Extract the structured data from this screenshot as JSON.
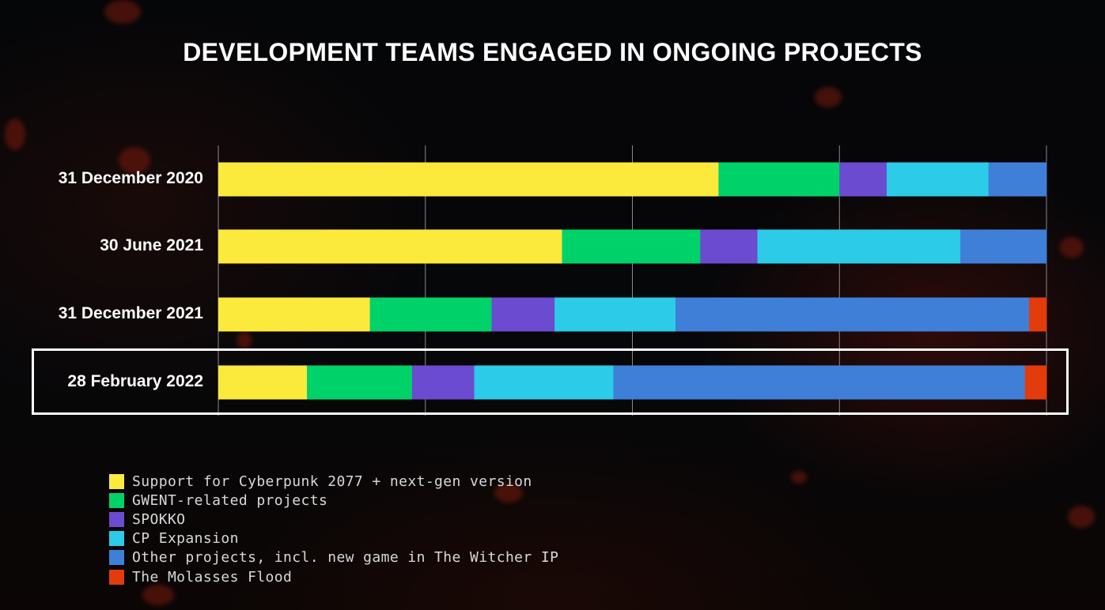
{
  "chart_data": {
    "type": "bar",
    "orientation": "horizontal",
    "stacked": true,
    "normalized": true,
    "title": "DEVELOPMENT TEAMS ENGAGED IN ONGOING PROJECTS",
    "xlabel": "",
    "ylabel": "",
    "xlim": [
      0,
      100
    ],
    "grid": true,
    "legend_position": "bottom-left",
    "highlighted_category": "28 February 2022",
    "categories": [
      "31 December 2020",
      "30 June 2021",
      "31 December 2021",
      "28 February 2022"
    ],
    "series": [
      {
        "name": "Support for Cyberpunk 2077 + next-gen version",
        "color": "#fbe93c",
        "values": [
          60.4,
          41.5,
          18.3,
          10.7
        ]
      },
      {
        "name": "GWENT-related projects",
        "color": "#00d26a",
        "values": [
          14.6,
          16.7,
          14.7,
          12.7
        ]
      },
      {
        "name": "SPOKKO",
        "color": "#6b4bcf",
        "values": [
          5.7,
          6.9,
          7.6,
          7.5
        ]
      },
      {
        "name": "CP Expansion",
        "color": "#2ccbe7",
        "values": [
          12.3,
          24.5,
          14.6,
          16.8
        ]
      },
      {
        "name": "Other projects, incl. new game in The Witcher IP",
        "color": "#3f7fd8",
        "values": [
          7.0,
          10.4,
          42.7,
          49.7
        ]
      },
      {
        "name": "The Molasses Flood",
        "color": "#e23b0c",
        "values": [
          0,
          0,
          2.1,
          2.6
        ]
      }
    ]
  }
}
